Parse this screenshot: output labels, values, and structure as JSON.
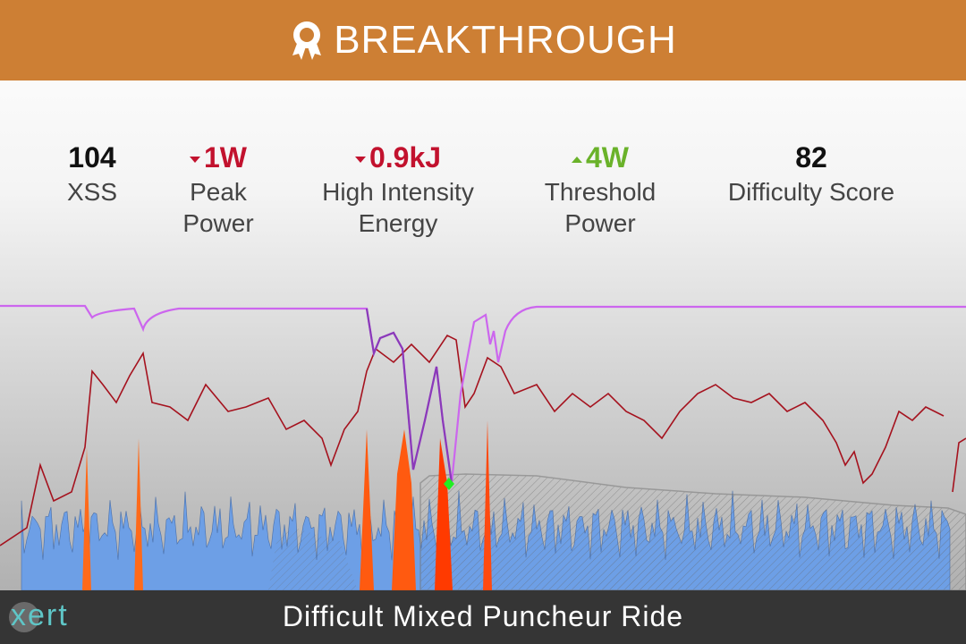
{
  "header": {
    "title": "BREAKTHROUGH"
  },
  "stats": [
    {
      "value": "104",
      "label": "XSS"
    },
    {
      "value": "1W",
      "label": "Peak Power",
      "trend": "down"
    },
    {
      "value": "0.9kJ",
      "label": "High Intensity Energy",
      "trend": "down"
    },
    {
      "value": "4W",
      "label": "Threshold Power",
      "trend": "up"
    },
    {
      "value": "82",
      "label": "Difficulty Score"
    }
  ],
  "footer": {
    "title": "Difficult Mixed Puncheur Ride",
    "logo": "xert"
  }
}
